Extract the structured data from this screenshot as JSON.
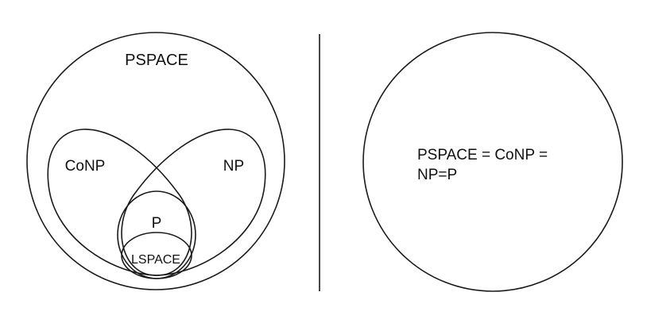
{
  "left_diagram": {
    "labels": {
      "pspace": "PSPACE",
      "conp": "CoNP",
      "np": "NP",
      "p": "P",
      "lspace": "LSPACE"
    }
  },
  "right_diagram": {
    "statement_line1": "PSPACE = CoNP =",
    "statement_line2": "NP=P"
  },
  "colors": {
    "stroke": "#1a1a1a",
    "text": "#111111",
    "background": "#ffffff"
  }
}
